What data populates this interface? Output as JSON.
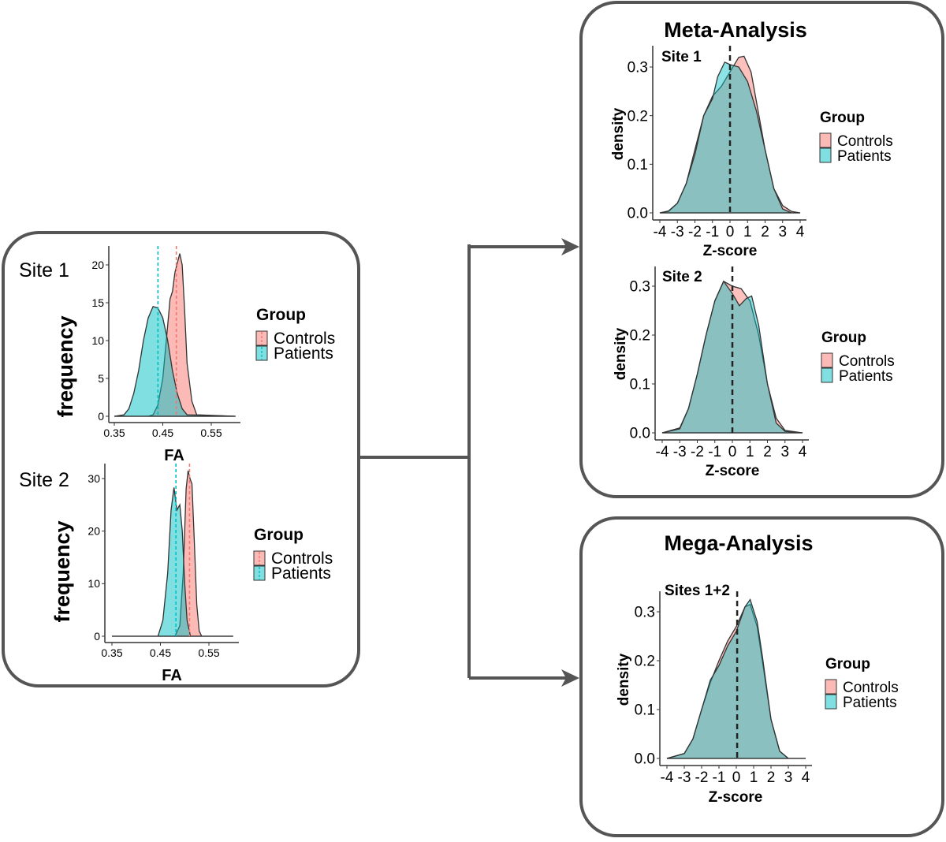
{
  "colors": {
    "controls": "#F8766D",
    "patients": "#00BFC4",
    "box": "#555555",
    "overlap": "#8FA8A8"
  },
  "panels": {
    "meta_title": "Meta-Analysis",
    "mega_title": "Mega-Analysis"
  },
  "legend": {
    "title": "Group",
    "items": [
      "Controls",
      "Patients"
    ]
  },
  "chart_data": [
    {
      "id": "fa_site1",
      "type": "area",
      "title": "Site 1",
      "xlabel": "FA",
      "ylabel": "frequency",
      "xlim": [
        0.35,
        0.6
      ],
      "ylim": [
        0,
        22
      ],
      "xticks": [
        0.35,
        0.45,
        0.55
      ],
      "xtick_labels": [
        "0.35",
        "0.45",
        "0.55"
      ],
      "yticks": [
        0,
        5,
        10,
        15,
        20
      ],
      "ytick_labels": [
        "0",
        "5",
        "10",
        "15",
        "20"
      ],
      "mean_lines": {
        "Controls": 0.478,
        "Patients": 0.44
      },
      "series": [
        {
          "name": "Controls",
          "x": [
            0.35,
            0.42,
            0.43,
            0.44,
            0.45,
            0.46,
            0.465,
            0.47,
            0.475,
            0.485,
            0.49,
            0.495,
            0.5,
            0.51,
            0.52,
            0.6
          ],
          "y": [
            0,
            0,
            0.2,
            1.5,
            5,
            12,
            15.5,
            16.5,
            19,
            21.5,
            20,
            14,
            7,
            2,
            0.2,
            0
          ]
        },
        {
          "name": "Patients",
          "x": [
            0.35,
            0.37,
            0.38,
            0.39,
            0.4,
            0.41,
            0.42,
            0.43,
            0.44,
            0.45,
            0.46,
            0.47,
            0.48,
            0.49,
            0.5,
            0.6
          ],
          "y": [
            0,
            0.2,
            1,
            3,
            6,
            10,
            13,
            14.5,
            14.3,
            13,
            10,
            6,
            3,
            1,
            0.2,
            0
          ]
        }
      ]
    },
    {
      "id": "fa_site2",
      "type": "area",
      "title": "Site 2",
      "xlabel": "FA",
      "ylabel": "frequency",
      "xlim": [
        0.35,
        0.6
      ],
      "ylim": [
        0,
        32
      ],
      "xticks": [
        0.35,
        0.45,
        0.55
      ],
      "xtick_labels": [
        "0.35",
        "0.45",
        "0.55"
      ],
      "yticks": [
        0,
        10,
        20,
        30
      ],
      "ytick_labels": [
        "0",
        "10",
        "20",
        "30"
      ],
      "mean_lines": {
        "Controls": 0.51,
        "Patients": 0.482
      },
      "series": [
        {
          "name": "Controls",
          "x": [
            0.35,
            0.48,
            0.49,
            0.497,
            0.503,
            0.507,
            0.511,
            0.515,
            0.52,
            0.525,
            0.53,
            0.535,
            0.6
          ],
          "y": [
            0,
            0,
            2,
            12,
            28,
            31.5,
            30,
            29,
            18,
            6,
            1,
            0,
            0
          ]
        },
        {
          "name": "Patients",
          "x": [
            0.35,
            0.445,
            0.455,
            0.465,
            0.472,
            0.478,
            0.484,
            0.49,
            0.495,
            0.5,
            0.505,
            0.512,
            0.6
          ],
          "y": [
            0,
            0,
            3,
            12,
            24,
            28.3,
            24,
            25,
            20,
            10,
            3,
            0,
            0
          ]
        }
      ]
    },
    {
      "id": "meta_site1",
      "type": "area",
      "title": "Site 1",
      "xlabel": "Z-score",
      "ylabel": "density",
      "xlim": [
        -4.3,
        4.3
      ],
      "ylim": [
        0,
        0.33
      ],
      "xticks": [
        -4,
        -3,
        -2,
        -1,
        0,
        1,
        2,
        3,
        4
      ],
      "xtick_labels": [
        "-4",
        "-3",
        "-2",
        "-1",
        "0",
        "1",
        "2",
        "3",
        "4"
      ],
      "yticks": [
        0,
        0.1,
        0.2,
        0.3
      ],
      "ytick_labels": [
        "0.0",
        "0.1",
        "0.2",
        "0.3"
      ],
      "mean_lines": {
        "All": 0
      },
      "series": [
        {
          "name": "Controls",
          "x": [
            -4,
            -3.5,
            -3,
            -2.5,
            -2,
            -1.5,
            -1,
            -0.5,
            0,
            0.5,
            0.8,
            1.2,
            1.5,
            2,
            2.5,
            3,
            3.5,
            4
          ],
          "y": [
            0,
            0.003,
            0.02,
            0.06,
            0.13,
            0.2,
            0.24,
            0.26,
            0.29,
            0.32,
            0.322,
            0.29,
            0.23,
            0.13,
            0.05,
            0.015,
            0.003,
            0
          ]
        },
        {
          "name": "Patients",
          "x": [
            -4,
            -3.5,
            -3,
            -2.5,
            -2,
            -1.5,
            -1,
            -0.7,
            -0.3,
            0,
            0.5,
            1,
            1.5,
            2,
            2.5,
            3,
            3.5,
            4
          ],
          "y": [
            0,
            0.004,
            0.02,
            0.06,
            0.12,
            0.2,
            0.235,
            0.28,
            0.31,
            0.305,
            0.3,
            0.27,
            0.21,
            0.13,
            0.05,
            0.008,
            0,
            0
          ]
        }
      ]
    },
    {
      "id": "meta_site2",
      "type": "area",
      "title": "Site 2",
      "xlabel": "Z-score",
      "ylabel": "density",
      "xlim": [
        -4.3,
        4.3
      ],
      "ylim": [
        0,
        0.33
      ],
      "xticks": [
        -4,
        -3,
        -2,
        -1,
        0,
        1,
        2,
        3,
        4
      ],
      "xtick_labels": [
        "-4",
        "-3",
        "-2",
        "-1",
        "0",
        "1",
        "2",
        "3",
        "4"
      ],
      "yticks": [
        0,
        0.1,
        0.2,
        0.3
      ],
      "ytick_labels": [
        "0.0",
        "0.1",
        "0.2",
        "0.3"
      ],
      "mean_lines": {
        "All": 0
      },
      "series": [
        {
          "name": "Controls",
          "x": [
            -4,
            -3,
            -2.5,
            -2,
            -1.5,
            -1,
            -0.5,
            0,
            0.5,
            1,
            1.5,
            2,
            2.5,
            3,
            4
          ],
          "y": [
            0,
            0.01,
            0.05,
            0.12,
            0.2,
            0.27,
            0.31,
            0.3,
            0.295,
            0.27,
            0.2,
            0.1,
            0.03,
            0.005,
            0
          ]
        },
        {
          "name": "Patients",
          "x": [
            -4,
            -3,
            -2.5,
            -2,
            -1.5,
            -1,
            -0.5,
            0,
            0.4,
            0.8,
            1.1,
            1.5,
            2,
            2.5,
            3,
            4
          ],
          "y": [
            0,
            0.008,
            0.05,
            0.12,
            0.2,
            0.27,
            0.31,
            0.285,
            0.26,
            0.275,
            0.28,
            0.22,
            0.1,
            0.02,
            0.003,
            0
          ]
        }
      ]
    },
    {
      "id": "mega",
      "type": "area",
      "title": "Sites 1+2",
      "xlabel": "Z-score",
      "ylabel": "density",
      "xlim": [
        -4.3,
        4.3
      ],
      "ylim": [
        0,
        0.33
      ],
      "xticks": [
        -4,
        -3,
        -2,
        -1,
        0,
        1,
        2,
        3,
        4
      ],
      "xtick_labels": [
        "-4",
        "-3",
        "-2",
        "-1",
        "0",
        "1",
        "2",
        "3",
        "4"
      ],
      "yticks": [
        0,
        0.1,
        0.2,
        0.3
      ],
      "ytick_labels": [
        "0.0",
        "0.1",
        "0.2",
        "0.3"
      ],
      "mean_lines": {
        "All": 0.05
      },
      "series": [
        {
          "name": "Controls",
          "x": [
            -4,
            -3,
            -2.5,
            -2,
            -1.5,
            -1,
            -0.5,
            0,
            0.5,
            0.8,
            1.2,
            1.5,
            2,
            2.5,
            3,
            4
          ],
          "y": [
            0,
            0.01,
            0.04,
            0.1,
            0.155,
            0.2,
            0.24,
            0.27,
            0.31,
            0.315,
            0.27,
            0.2,
            0.08,
            0.015,
            0,
            0
          ]
        },
        {
          "name": "Patients",
          "x": [
            -4,
            -3,
            -2.5,
            -2,
            -1.5,
            -1,
            -0.5,
            0,
            0.5,
            0.8,
            1.2,
            1.5,
            2,
            2.5,
            3,
            4
          ],
          "y": [
            0,
            0.01,
            0.04,
            0.1,
            0.16,
            0.19,
            0.23,
            0.26,
            0.31,
            0.325,
            0.28,
            0.21,
            0.08,
            0.015,
            0,
            0
          ]
        }
      ]
    }
  ]
}
